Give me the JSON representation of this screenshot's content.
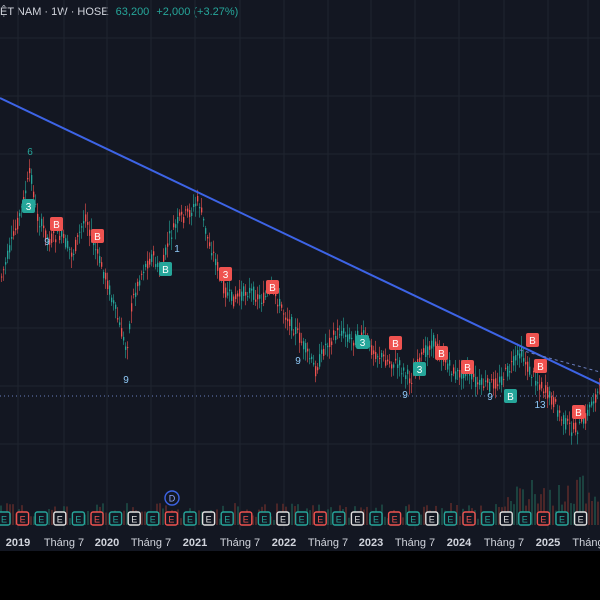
{
  "header": {
    "symbol": "ỆT NAM · 1W · HOSE",
    "price": "63,200",
    "change": "+2,000 (+3.27%)"
  },
  "colors": {
    "background": "#131722",
    "up": "#26a69a",
    "down": "#ef5350",
    "trendline": "#3d64e6",
    "grid": "#1f2430"
  },
  "chart_data": {
    "type": "candlestick",
    "period": "1W",
    "x_ticks": [
      "2019",
      "Tháng 7",
      "2020",
      "Tháng 7",
      "2021",
      "Tháng 7",
      "2022",
      "Tháng 7",
      "2023",
      "Tháng 7",
      "2024",
      "Tháng 7",
      "2025",
      "Tháng"
    ],
    "x_tick_bold": [
      true,
      false,
      true,
      false,
      true,
      false,
      true,
      false,
      true,
      false,
      true,
      false,
      true,
      false
    ],
    "markers_B": [
      "3",
      "B",
      "B",
      "B",
      "3",
      "B",
      "3",
      "B",
      "3",
      "B",
      "B",
      "B",
      "B",
      "B",
      "B"
    ],
    "td_numbers": [
      "6",
      "9",
      "1",
      "9",
      "9",
      "9",
      "13",
      "9"
    ],
    "event_badges": [
      "E",
      "E",
      "E",
      "E",
      "E",
      "E",
      "E",
      "E",
      "E",
      "E",
      "E",
      "E",
      "E",
      "E",
      "E",
      "E",
      "E",
      "E",
      "E",
      "E",
      "E",
      "E",
      "E",
      "E",
      "E",
      "E",
      "E",
      "E",
      "E",
      "E",
      "E",
      "E"
    ],
    "dividend_badge": "D"
  }
}
